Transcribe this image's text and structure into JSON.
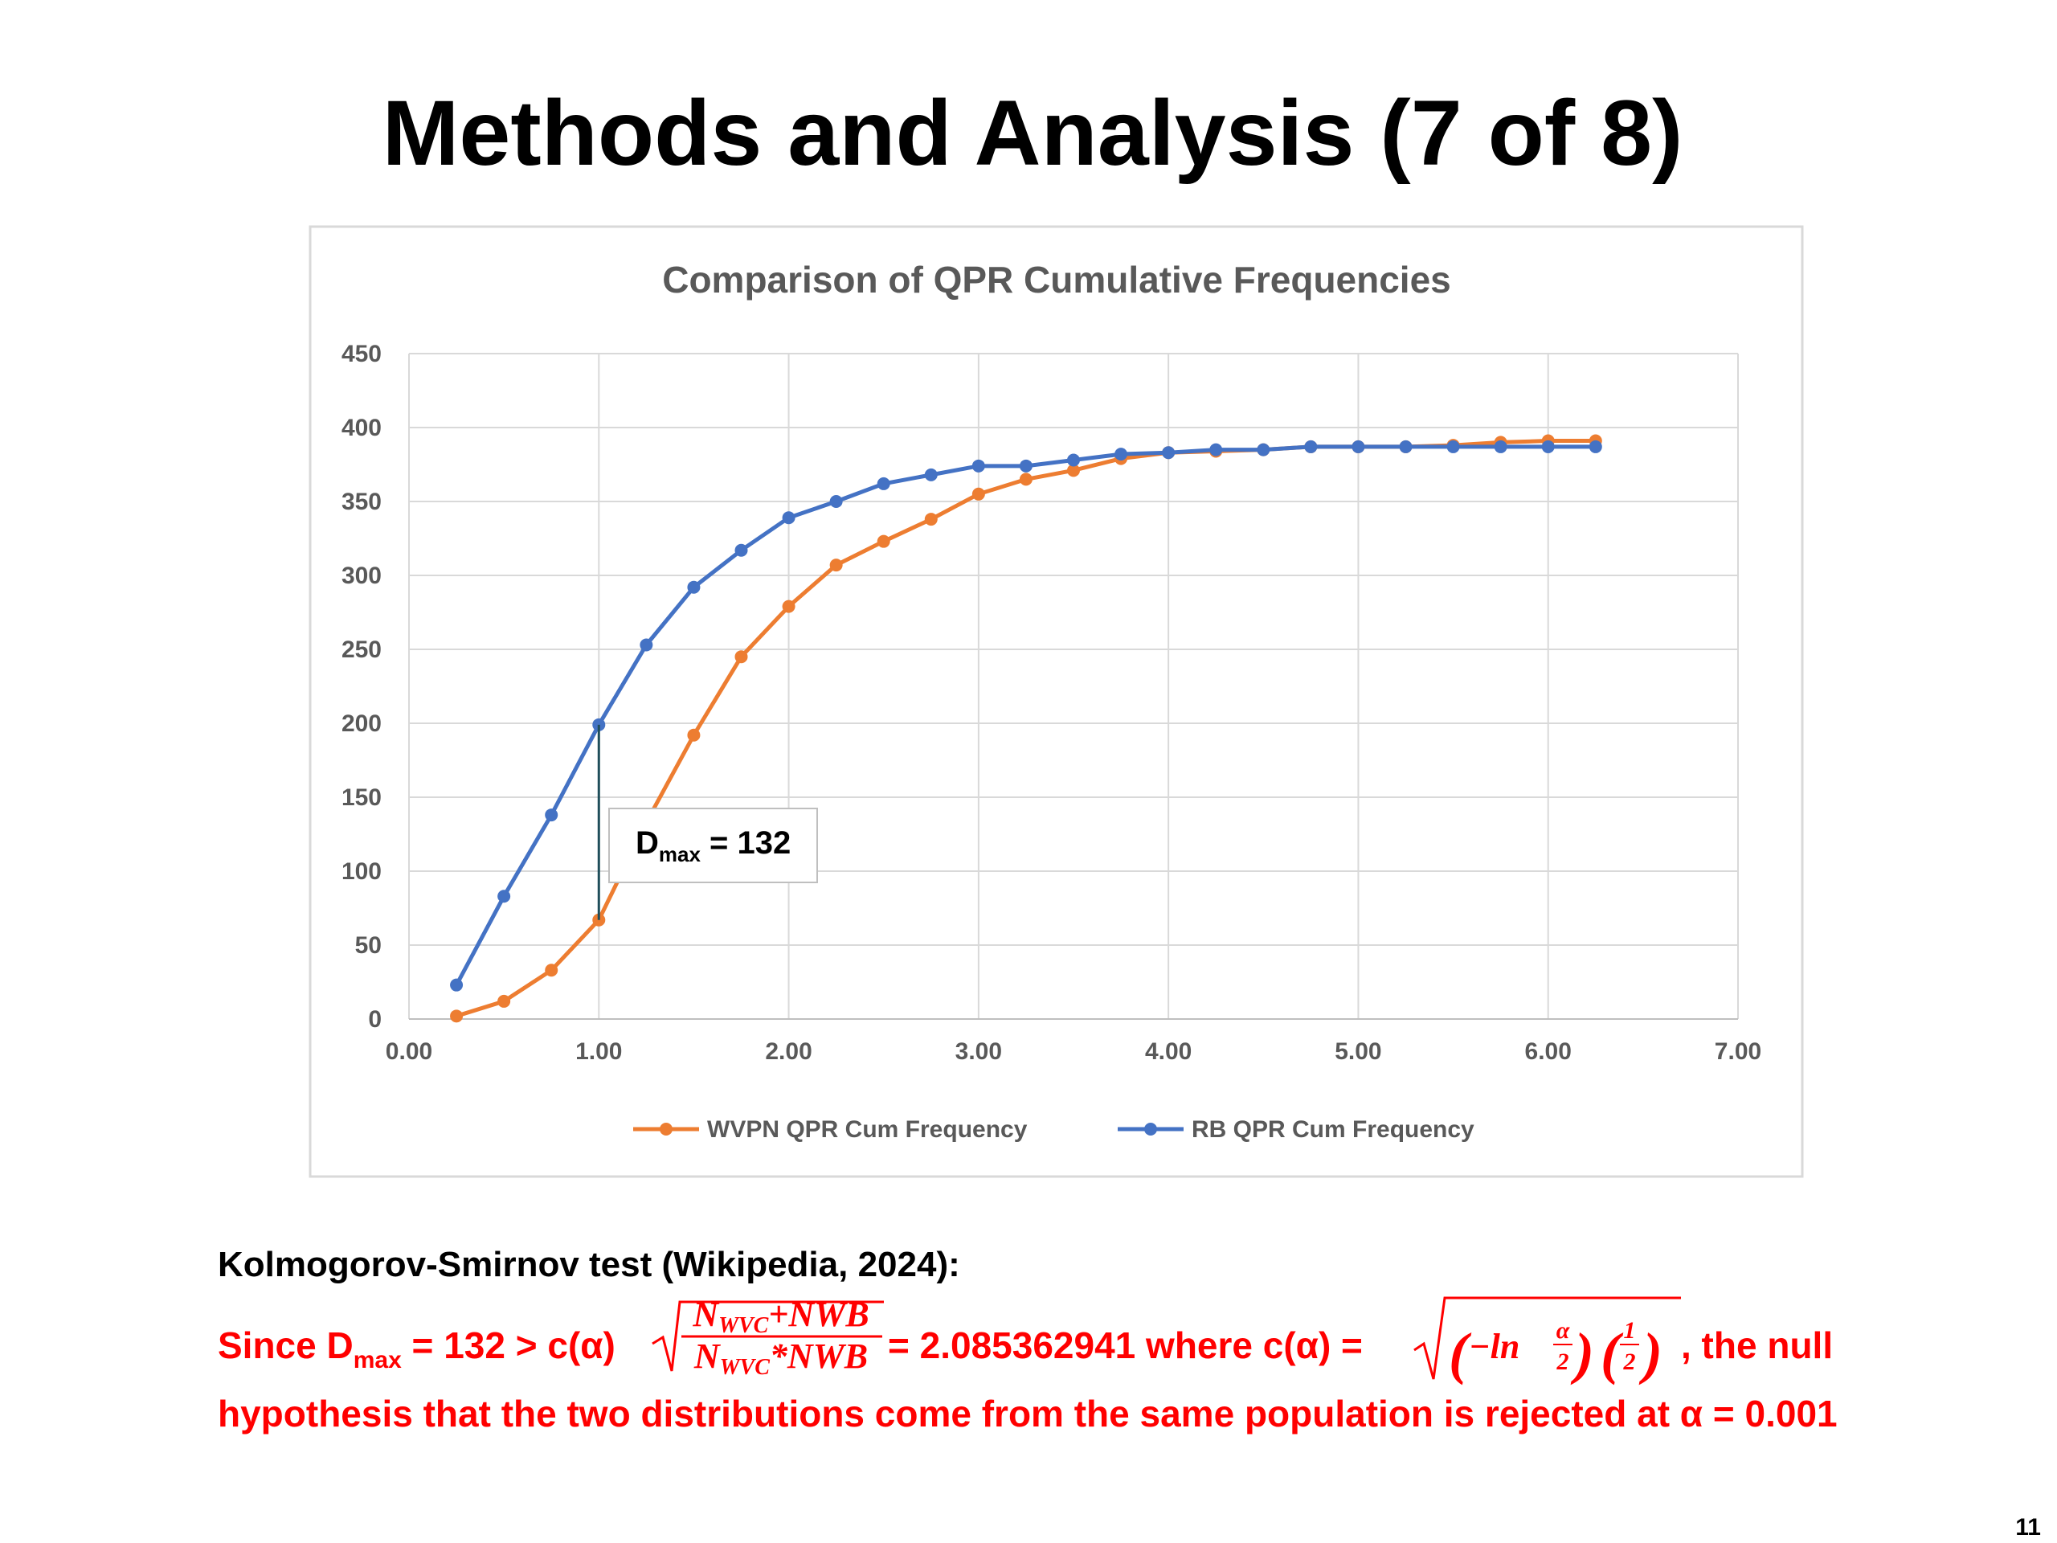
{
  "title": "Methods and Analysis (7 of 8)",
  "chart_data": {
    "type": "line",
    "title": "Comparison of QPR Cumulative Frequencies",
    "x": [
      0.25,
      0.5,
      0.75,
      1.0,
      1.25,
      1.5,
      1.75,
      2.0,
      2.25,
      2.5,
      2.75,
      3.0,
      3.25,
      3.5,
      3.75,
      4.0,
      4.25,
      4.5,
      4.75,
      5.0,
      5.25,
      5.5,
      5.75,
      6.0,
      6.25
    ],
    "series": [
      {
        "name": "WVPN QPR Cum Frequency",
        "color": "#ed7d31",
        "values": [
          2,
          12,
          33,
          67,
          133,
          192,
          245,
          279,
          307,
          323,
          338,
          355,
          365,
          371,
          379,
          383,
          384,
          385,
          387,
          387,
          387,
          388,
          390,
          391,
          391
        ]
      },
      {
        "name": "RB QPR Cum Frequency",
        "color": "#4472c4",
        "values": [
          23,
          83,
          138,
          199,
          253,
          292,
          317,
          339,
          350,
          362,
          368,
          374,
          374,
          378,
          382,
          383,
          385,
          385,
          387,
          387,
          387,
          387,
          387,
          387,
          387
        ]
      }
    ],
    "xlim": [
      0,
      7
    ],
    "xticks": [
      {
        "value": 0,
        "label": "0.00"
      },
      {
        "value": 1,
        "label": "1.00"
      },
      {
        "value": 2,
        "label": "2.00"
      },
      {
        "value": 3,
        "label": "3.00"
      },
      {
        "value": 4,
        "label": "4.00"
      },
      {
        "value": 5,
        "label": "5.00"
      },
      {
        "value": 6,
        "label": "6.00"
      },
      {
        "value": 7,
        "label": "7.00"
      }
    ],
    "ylim": [
      0,
      450
    ],
    "yticks": [
      0,
      50,
      100,
      150,
      200,
      250,
      300,
      350,
      400,
      450
    ],
    "grid": true,
    "legend": "bottom",
    "annotation": [
      "D",
      "max",
      " = 132"
    ]
  },
  "text": {
    "heading": "Kolmogorov-Smirnov test (Wikipedia, 2024):",
    "line1": [
      "Since D",
      "max",
      " = 132 > c(α)"
    ],
    "numerator": [
      "N",
      "WVC",
      "+NWB"
    ],
    "denominator": [
      "N",
      "WVC",
      "*NWB"
    ],
    "middle": " = 2.085362941 where c(α) = ",
    "expr": [
      "(",
      "−ln",
      "α",
      "2",
      ")",
      "(",
      "1",
      "2",
      ")"
    ],
    "end": ", the null",
    "line2": "hypothesis that the two distributions come from the same population is rejected at α = 0.001"
  },
  "page_number": "11"
}
